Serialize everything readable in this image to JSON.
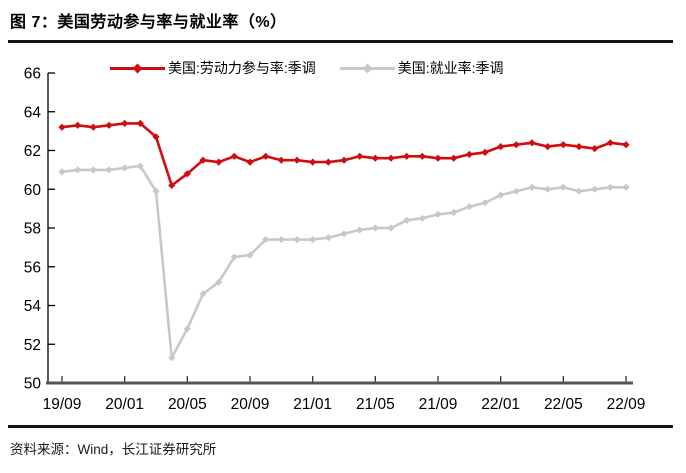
{
  "page": {
    "title": "图 7：美国劳动参与率与就业率（%）",
    "source": "资料来源：Wind，长江证券研究所"
  },
  "colors": {
    "participation_red": "#d20b10",
    "employment_gray": "#c8c8c8",
    "x_axis": "#555555",
    "y_axis": "#000000",
    "rule": "#141414",
    "tick_label": "#000000"
  },
  "chart_data": {
    "type": "line",
    "title": "图 7：美国劳动参与率与就业率（%）",
    "x_frequency": "monthly",
    "x_range": [
      "19/09",
      "22/09"
    ],
    "x_tick_labels": [
      "19/09",
      "20/01",
      "20/05",
      "20/09",
      "21/01",
      "21/05",
      "21/09",
      "22/01",
      "22/05",
      "22/09"
    ],
    "x_tick_every": 4,
    "n_points": 37,
    "ylim": [
      50,
      66
    ],
    "ytick_step": 2,
    "grid": false,
    "legend_position": "top",
    "series": [
      {
        "name": "美国:劳动力参与率:季调",
        "color": "#d20b10",
        "marker": "diamond",
        "values": [
          63.2,
          63.3,
          63.2,
          63.3,
          63.4,
          63.4,
          62.7,
          60.2,
          60.8,
          61.5,
          61.4,
          61.7,
          61.4,
          61.7,
          61.5,
          61.5,
          61.4,
          61.4,
          61.5,
          61.7,
          61.6,
          61.6,
          61.7,
          61.7,
          61.6,
          61.6,
          61.8,
          61.9,
          62.2,
          62.3,
          62.4,
          62.2,
          62.3,
          62.2,
          62.1,
          62.4,
          62.3
        ]
      },
      {
        "name": "美国:就业率:季调",
        "color": "#c8c8c8",
        "marker": "diamond",
        "values": [
          60.9,
          61.0,
          61.0,
          61.0,
          61.1,
          61.2,
          59.9,
          51.3,
          52.8,
          54.6,
          55.2,
          56.5,
          56.6,
          57.4,
          57.4,
          57.4,
          57.4,
          57.5,
          57.7,
          57.9,
          58.0,
          58.0,
          58.4,
          58.5,
          58.7,
          58.8,
          59.1,
          59.3,
          59.7,
          59.9,
          60.1,
          60.0,
          60.1,
          59.9,
          60.0,
          60.1,
          60.1
        ]
      }
    ]
  }
}
